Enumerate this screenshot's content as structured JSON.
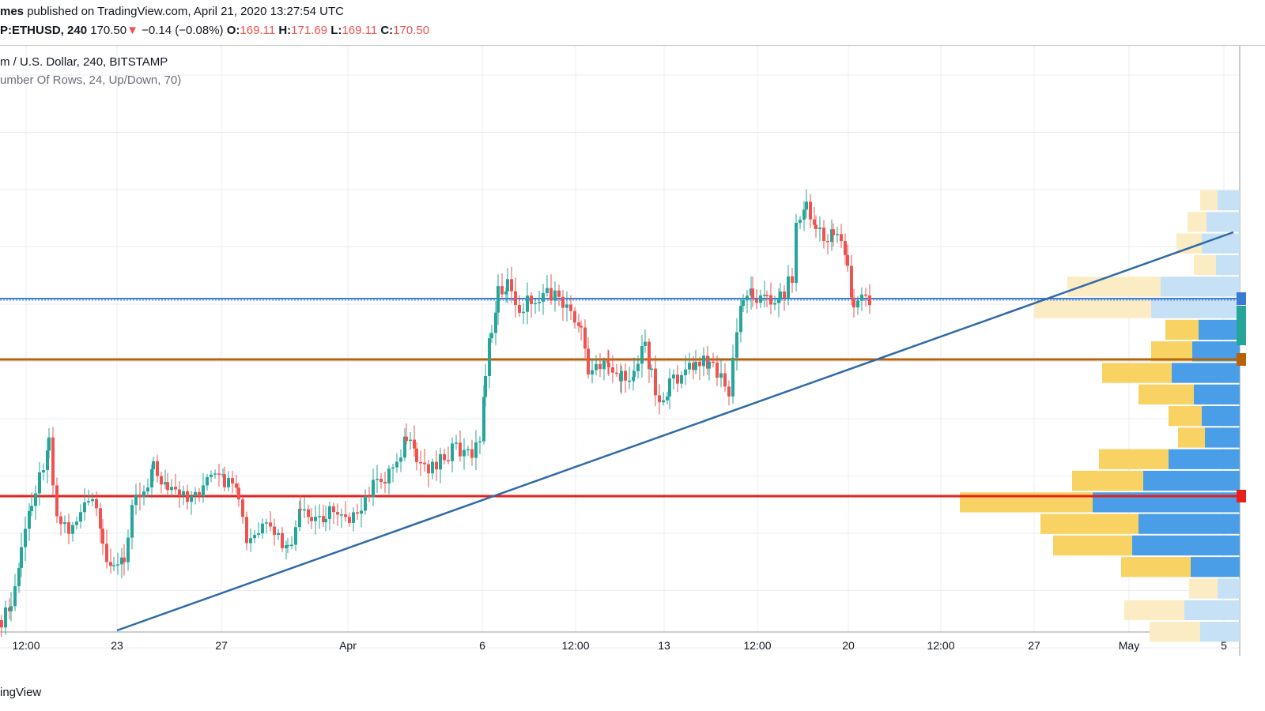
{
  "header": {
    "publisher": "mes",
    "published_text": " published on TradingView.com, April 21, 2020 13:27:54 UTC",
    "symbol": "P:ETHUSD, 240",
    "last": "170.50",
    "down_arrow": "▼",
    "change": "−0.14 (−0.08%)",
    "o_label": "O:",
    "o_value": "169.11",
    "h_label": "H:",
    "h_value": "171.69",
    "l_label": "L:",
    "l_value": "169.11",
    "c_label": "C:",
    "c_value": "170.50"
  },
  "chart_title": "m / U.S. Dollar, 240, BITSTAMP",
  "indicator_text": "umber Of Rows, 24, Up/Down, 70)",
  "footer": "ingView",
  "colors": {
    "up": "#26a69a",
    "down": "#ef5350",
    "vp_up": "#4a9ee8",
    "vp_down": "#f8d263",
    "vp_up_light": "#c6e0f5",
    "vp_down_light": "#fbecc4",
    "blue_line": "#3a7bd5",
    "orange_line": "#b8620c",
    "red_line": "#e8201c",
    "trendline": "#2f6aa8",
    "grid": "#e9edf2"
  },
  "chart_data": {
    "type": "candlestick",
    "xaxis_labels": [
      "12:00",
      "23",
      "27",
      "Apr",
      "6",
      "12:00",
      "13",
      "12:00",
      "20",
      "12:00",
      "27",
      "May",
      "5"
    ],
    "horizontal_levels": [
      {
        "name": "resistance",
        "color": "#3a7bd5"
      },
      {
        "name": "support",
        "color": "#b8620c"
      },
      {
        "name": "poc",
        "color": "#e8201c"
      }
    ],
    "volume_profile_rows": 24
  }
}
